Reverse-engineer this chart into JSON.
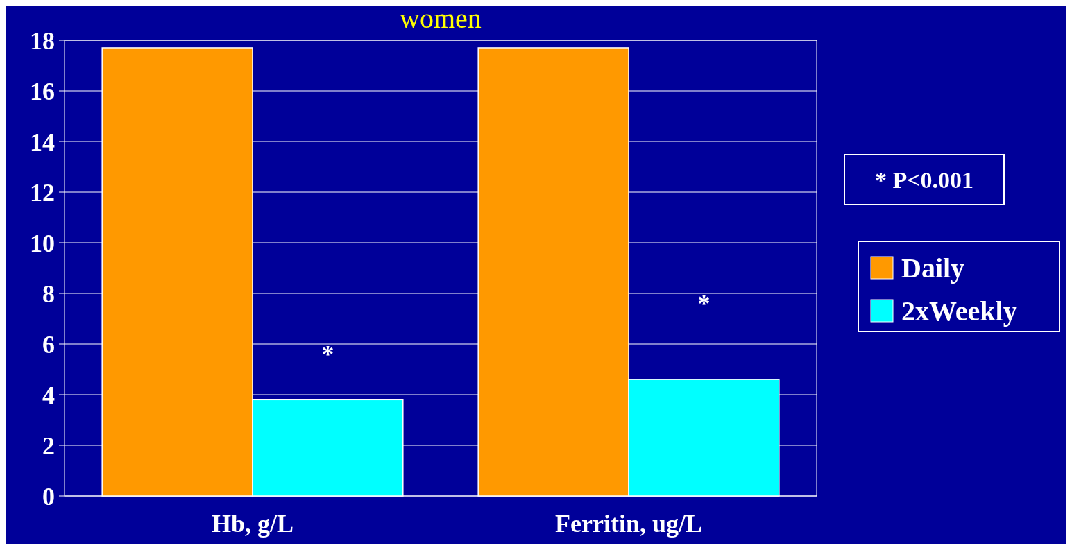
{
  "chart_data": {
    "type": "bar",
    "title": "women",
    "categories": [
      "Hb, g/L",
      "Ferritin, ug/L"
    ],
    "series": [
      {
        "name": "Daily",
        "color": "#ff9900",
        "values": [
          17.7,
          17.7
        ]
      },
      {
        "name": "2xWeekly",
        "color": "#00ffff",
        "values": [
          3.8,
          4.6
        ]
      }
    ],
    "ylim": [
      0,
      18
    ],
    "yticks": [
      0,
      2,
      4,
      6,
      8,
      10,
      12,
      14,
      16,
      18
    ],
    "grid": "y",
    "legend": "right",
    "annotations": [
      {
        "text": "*",
        "x": "Hb, g/L",
        "y": 5.6
      },
      {
        "text": "*",
        "x": "Ferritin, ug/L",
        "y": 7.6
      },
      "* P<0.001"
    ]
  }
}
